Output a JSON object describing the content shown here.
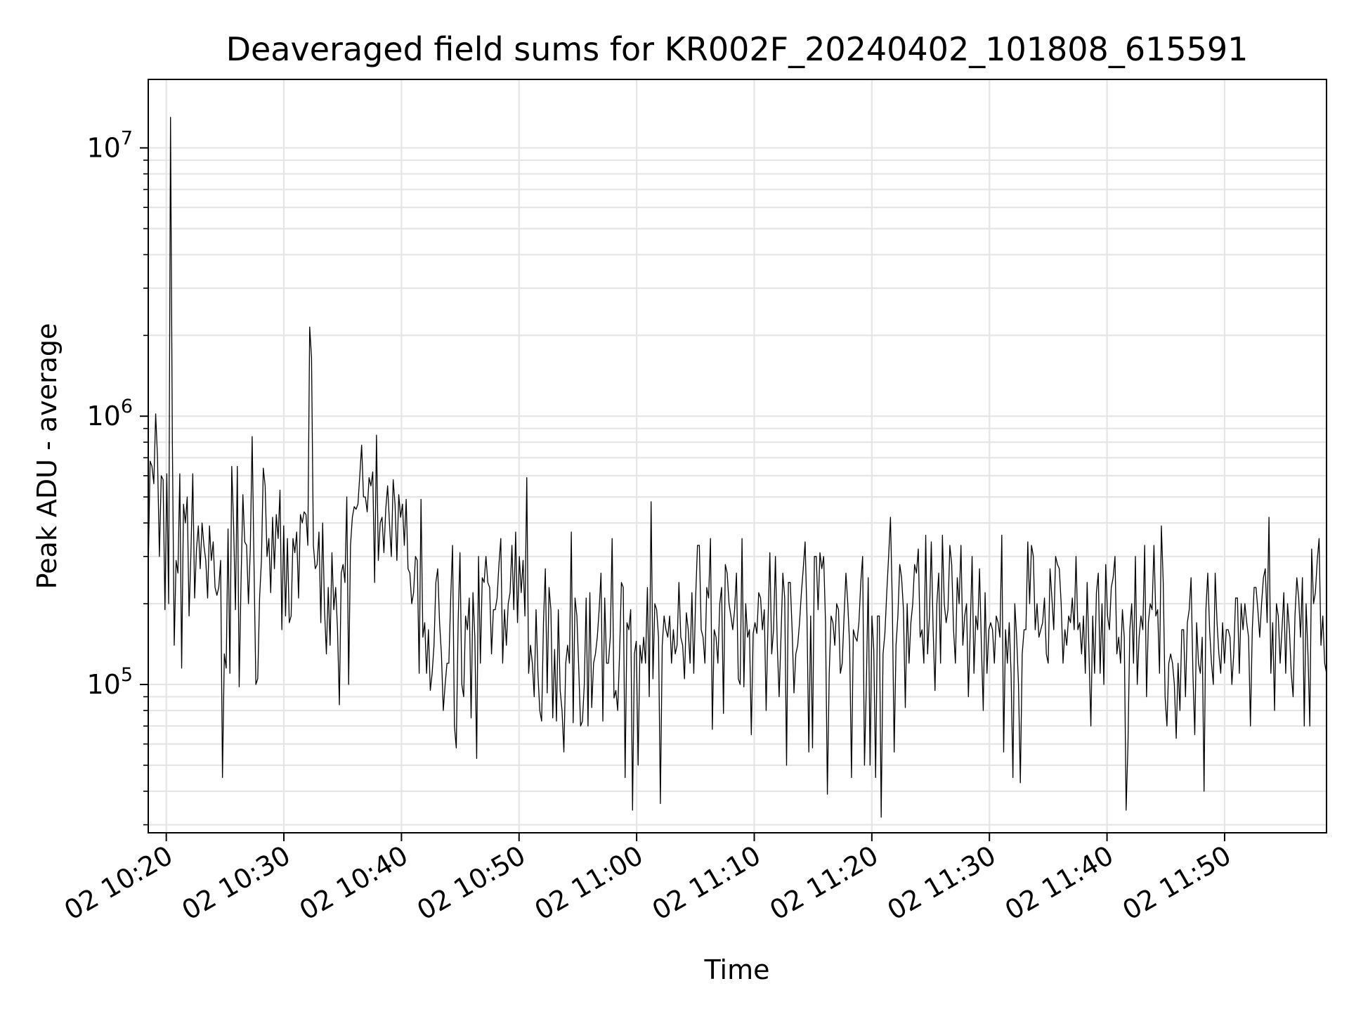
{
  "chart_data": {
    "type": "line",
    "title": "Deaveraged field sums for KR002F_20240402_101808_615591",
    "xlabel": "Time",
    "ylabel": "Peak ADU - average",
    "yscale": "log",
    "ylim": [
      28000,
      18000000
    ],
    "xlim": [
      "2024-04-02 10:18:28",
      "2024-04-02 11:58:40"
    ],
    "grid": true,
    "line_color": "#000000",
    "x_ticks": [
      "02 10:20",
      "02 10:30",
      "02 10:40",
      "02 10:50",
      "02 11:00",
      "02 11:10",
      "02 11:20",
      "02 11:30",
      "02 11:40",
      "02 11:50"
    ],
    "y_ticks": [
      {
        "value": 100000,
        "base": "10",
        "exp": "5"
      },
      {
        "value": 1000000,
        "base": "10",
        "exp": "6"
      },
      {
        "value": 10000000,
        "base": "10",
        "exp": "7"
      }
    ],
    "start_time": "2024-04-02 10:18:28",
    "end_time": "2024-04-02 11:58:40",
    "series": [
      {
        "values": [
          270000,
          680000,
          650000,
          560000,
          1020000,
          700000,
          300000,
          600000,
          580000,
          190000,
          610000,
          200000,
          13000000,
          800000,
          140000,
          290000,
          260000,
          610000,
          115000,
          470000,
          400000,
          500000,
          180000,
          310000,
          610000,
          210000,
          320000,
          390000,
          270000,
          400000,
          330000,
          290000,
          210000,
          390000,
          290000,
          340000,
          230000,
          215000,
          230000,
          290000,
          45000,
          130000,
          115000,
          380000,
          110000,
          650000,
          390000,
          190000,
          650000,
          98000,
          240000,
          510000,
          340000,
          330000,
          200000,
          320000,
          840000,
          280000,
          100000,
          105000,
          210000,
          290000,
          640000,
          550000,
          300000,
          350000,
          220000,
          420000,
          270000,
          430000,
          350000,
          530000,
          160000,
          390000,
          180000,
          350000,
          170000,
          180000,
          350000,
          310000,
          370000,
          210000,
          430000,
          400000,
          440000,
          430000,
          330000,
          2150000,
          1650000,
          330000,
          270000,
          280000,
          370000,
          170000,
          400000,
          190000,
          130000,
          230000,
          140000,
          310000,
          190000,
          230000,
          160000,
          84000,
          260000,
          280000,
          240000,
          500000,
          100000,
          330000,
          420000,
          460000,
          450000,
          470000,
          600000,
          780000,
          500000,
          500000,
          440000,
          590000,
          550000,
          620000,
          240000,
          850000,
          290000,
          400000,
          420000,
          310000,
          450000,
          550000,
          400000,
          300000,
          580000,
          470000,
          290000,
          510000,
          420000,
          470000,
          330000,
          490000,
          270000,
          260000,
          200000,
          220000,
          300000,
          290000,
          110000,
          490000,
          150000,
          170000,
          110000,
          160000,
          95000,
          110000,
          140000,
          240000,
          270000,
          170000,
          130000,
          80000,
          100000,
          120000,
          120000,
          210000,
          330000,
          70000,
          58000,
          170000,
          310000,
          100000,
          90000,
          180000,
          160000,
          210000,
          75000,
          220000,
          150000,
          53000,
          300000,
          120000,
          250000,
          240000,
          300000,
          240000,
          230000,
          130000,
          190000,
          190000,
          210000,
          280000,
          350000,
          120000,
          190000,
          140000,
          200000,
          220000,
          330000,
          190000,
          370000,
          170000,
          300000,
          220000,
          290000,
          180000,
          590000,
          110000,
          140000,
          120000,
          90000,
          190000,
          110000,
          80000,
          73000,
          170000,
          270000,
          93000,
          230000,
          190000,
          75000,
          135000,
          73000,
          190000,
          95000,
          80000,
          56000,
          120000,
          140000,
          120000,
          370000,
          72000,
          210000,
          180000,
          115000,
          70000,
          73000,
          100000,
          210000,
          70000,
          220000,
          82000,
          120000,
          130000,
          150000,
          190000,
          260000,
          73000,
          210000,
          120000,
          120000,
          150000,
          350000,
          89000,
          95000,
          80000,
          130000,
          240000,
          230000,
          45000,
          170000,
          160000,
          190000,
          34000,
          130000,
          145000,
          50000,
          140000,
          120000,
          150000,
          120000,
          230000,
          90000,
          480000,
          105000,
          200000,
          190000,
          150000,
          36000,
          140000,
          180000,
          160000,
          150000,
          180000,
          120000,
          160000,
          130000,
          140000,
          240000,
          150000,
          140000,
          105000,
          185000,
          160000,
          120000,
          220000,
          110000,
          210000,
          330000,
          330000,
          160000,
          150000,
          120000,
          230000,
          210000,
          350000,
          68000,
          160000,
          150000,
          120000,
          200000,
          230000,
          78000,
          280000,
          260000,
          200000,
          180000,
          160000,
          190000,
          260000,
          105000,
          100000,
          350000,
          98000,
          200000,
          150000,
          160000,
          65000,
          155000,
          170000,
          155000,
          220000,
          210000,
          160000,
          190000,
          80000,
          170000,
          310000,
          130000,
          160000,
          300000,
          140000,
          90000,
          150000,
          260000,
          210000,
          50000,
          240000,
          240000,
          160000,
          93000,
          130000,
          140000,
          170000,
          220000,
          270000,
          340000,
          180000,
          56000,
          180000,
          58000,
          300000,
          300000,
          190000,
          310000,
          270000,
          300000,
          170000,
          39000,
          110000,
          180000,
          170000,
          140000,
          200000,
          190000,
          110000,
          120000,
          180000,
          260000,
          200000,
          140000,
          45000,
          160000,
          150000,
          145000,
          170000,
          240000,
          300000,
          50000,
          100000,
          250000,
          50000,
          180000,
          135000,
          45000,
          180000,
          180000,
          32000,
          130000,
          155000,
          220000,
          300000,
          420000,
          200000,
          56000,
          140000,
          180000,
          280000,
          250000,
          190000,
          82000,
          200000,
          120000,
          170000,
          200000,
          280000,
          260000,
          320000,
          150000,
          160000,
          120000,
          360000,
          130000,
          180000,
          340000,
          160000,
          95000,
          200000,
          260000,
          120000,
          360000,
          200000,
          170000,
          190000,
          330000,
          280000,
          160000,
          120000,
          250000,
          200000,
          330000,
          140000,
          180000,
          200000,
          90000,
          160000,
          300000,
          110000,
          180000,
          160000,
          270000,
          140000,
          80000,
          220000,
          110000,
          160000,
          170000,
          160000,
          120000,
          180000,
          170000,
          150000,
          360000,
          56000,
          160000,
          120000,
          170000,
          110000,
          45000,
          200000,
          150000,
          100000,
          43000,
          130000,
          160000,
          160000,
          340000,
          200000,
          330000,
          300000,
          160000,
          200000,
          150000,
          160000,
          170000,
          210000,
          130000,
          120000,
          270000,
          210000,
          160000,
          300000,
          280000,
          270000,
          200000,
          120000,
          160000,
          140000,
          180000,
          170000,
          210000,
          160000,
          300000,
          160000,
          170000,
          130000,
          180000,
          110000,
          240000,
          130000,
          70000,
          180000,
          110000,
          220000,
          260000,
          110000,
          200000,
          100000,
          280000,
          180000,
          160000,
          230000,
          250000,
          300000,
          130000,
          150000,
          120000,
          190000,
          150000,
          34000,
          60000,
          160000,
          200000,
          120000,
          300000,
          100000,
          150000,
          180000,
          160000,
          330000,
          90000,
          170000,
          200000,
          190000,
          330000,
          180000,
          190000,
          110000,
          390000,
          240000,
          90000,
          70000,
          120000,
          130000,
          120000,
          100000,
          63000,
          120000,
          80000,
          160000,
          160000,
          90000,
          170000,
          190000,
          250000,
          110000,
          65000,
          170000,
          120000,
          110000,
          150000,
          40000,
          190000,
          260000,
          160000,
          120000,
          100000,
          260000,
          170000,
          130000,
          110000,
          170000,
          120000,
          160000,
          160000,
          150000,
          100000,
          130000,
          210000,
          210000,
          110000,
          200000,
          160000,
          200000,
          170000,
          150000,
          70000,
          160000,
          230000,
          230000,
          190000,
          150000,
          200000,
          250000,
          270000,
          170000,
          420000,
          110000,
          170000,
          80000,
          200000,
          180000,
          120000,
          160000,
          220000,
          110000,
          200000,
          160000,
          110000,
          90000,
          180000,
          250000,
          210000,
          150000,
          250000,
          70000,
          200000,
          130000,
          70000,
          320000,
          200000,
          220000,
          290000,
          350000,
          140000,
          180000,
          120000,
          110000
        ]
      }
    ]
  }
}
